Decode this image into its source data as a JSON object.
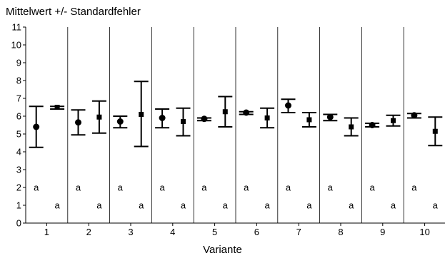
{
  "chart_data": {
    "type": "scatter",
    "title": "Mittelwert +/- Standardfehler",
    "xlabel": "Variante",
    "ylabel": "",
    "ylim": [
      0,
      11
    ],
    "yticks": [
      0,
      1,
      2,
      3,
      4,
      5,
      6,
      7,
      8,
      9,
      10,
      11
    ],
    "categories": [
      "1",
      "2",
      "3",
      "4",
      "5",
      "6",
      "7",
      "8",
      "9",
      "10"
    ],
    "grid": false,
    "category_separators": true,
    "series": [
      {
        "marker": "circle",
        "values": [
          5.4,
          5.65,
          5.7,
          5.9,
          5.85,
          6.2,
          6.6,
          5.95,
          5.5,
          6.05
        ],
        "error_low": [
          4.25,
          4.95,
          5.35,
          5.35,
          5.75,
          6.1,
          6.2,
          5.75,
          5.4,
          5.9
        ],
        "error_high": [
          6.55,
          6.35,
          6.0,
          6.4,
          5.9,
          6.25,
          6.95,
          6.1,
          5.6,
          6.15
        ],
        "group_labels": [
          "a",
          "a",
          "a",
          "a",
          "a",
          "a",
          "a",
          "a",
          "a",
          "a"
        ],
        "group_label_y": 2
      },
      {
        "marker": "square",
        "values": [
          6.5,
          5.95,
          6.1,
          5.7,
          6.25,
          5.9,
          5.8,
          5.4,
          5.75,
          5.15
        ],
        "error_low": [
          6.4,
          5.05,
          4.3,
          4.9,
          5.4,
          5.35,
          5.4,
          4.9,
          5.45,
          4.35
        ],
        "error_high": [
          6.55,
          6.85,
          7.95,
          6.45,
          7.1,
          6.45,
          6.2,
          5.9,
          6.05,
          5.95
        ],
        "group_labels": [
          "a",
          "a",
          "a",
          "a",
          "a",
          "a",
          "a",
          "a",
          "a",
          "a"
        ],
        "group_label_y": 1
      }
    ]
  }
}
